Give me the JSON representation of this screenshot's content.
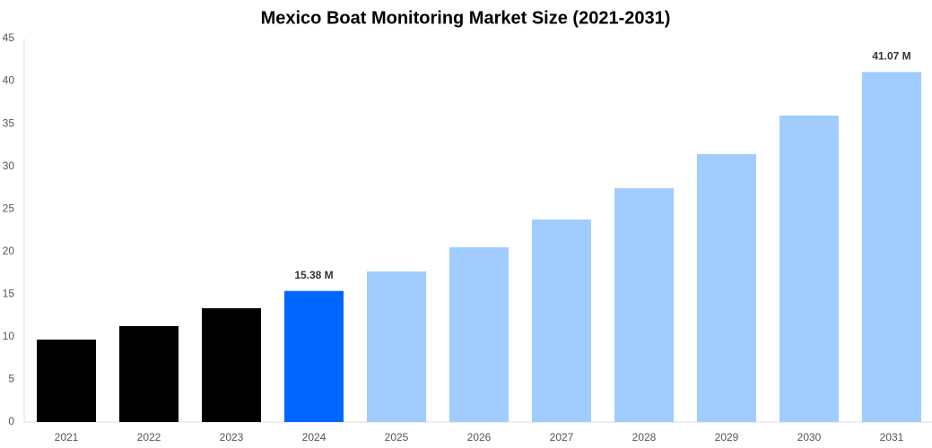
{
  "chart_data": {
    "type": "bar",
    "title": "Mexico Boat Monitoring Market Size (2021-2031)",
    "categories": [
      "2021",
      "2022",
      "2023",
      "2024",
      "2025",
      "2026",
      "2027",
      "2028",
      "2029",
      "2030",
      "2031"
    ],
    "values": [
      9.67,
      11.25,
      13.35,
      15.38,
      17.67,
      20.5,
      23.76,
      27.44,
      31.44,
      35.96,
      41.07
    ],
    "value_labels": [
      null,
      null,
      null,
      "15.38 M",
      null,
      null,
      null,
      null,
      null,
      null,
      "41.07 M"
    ],
    "colors": [
      "#000000",
      "#000000",
      "#000000",
      "#0066ff",
      "#a0cdfd",
      "#a0cdfd",
      "#a0cdfd",
      "#a0cdfd",
      "#a0cdfd",
      "#a0cdfd",
      "#a0cdfd"
    ],
    "ylim": [
      0,
      45
    ],
    "yticks": [
      0,
      5,
      10,
      15,
      20,
      25,
      30,
      35,
      40,
      45
    ],
    "grid": false
  }
}
